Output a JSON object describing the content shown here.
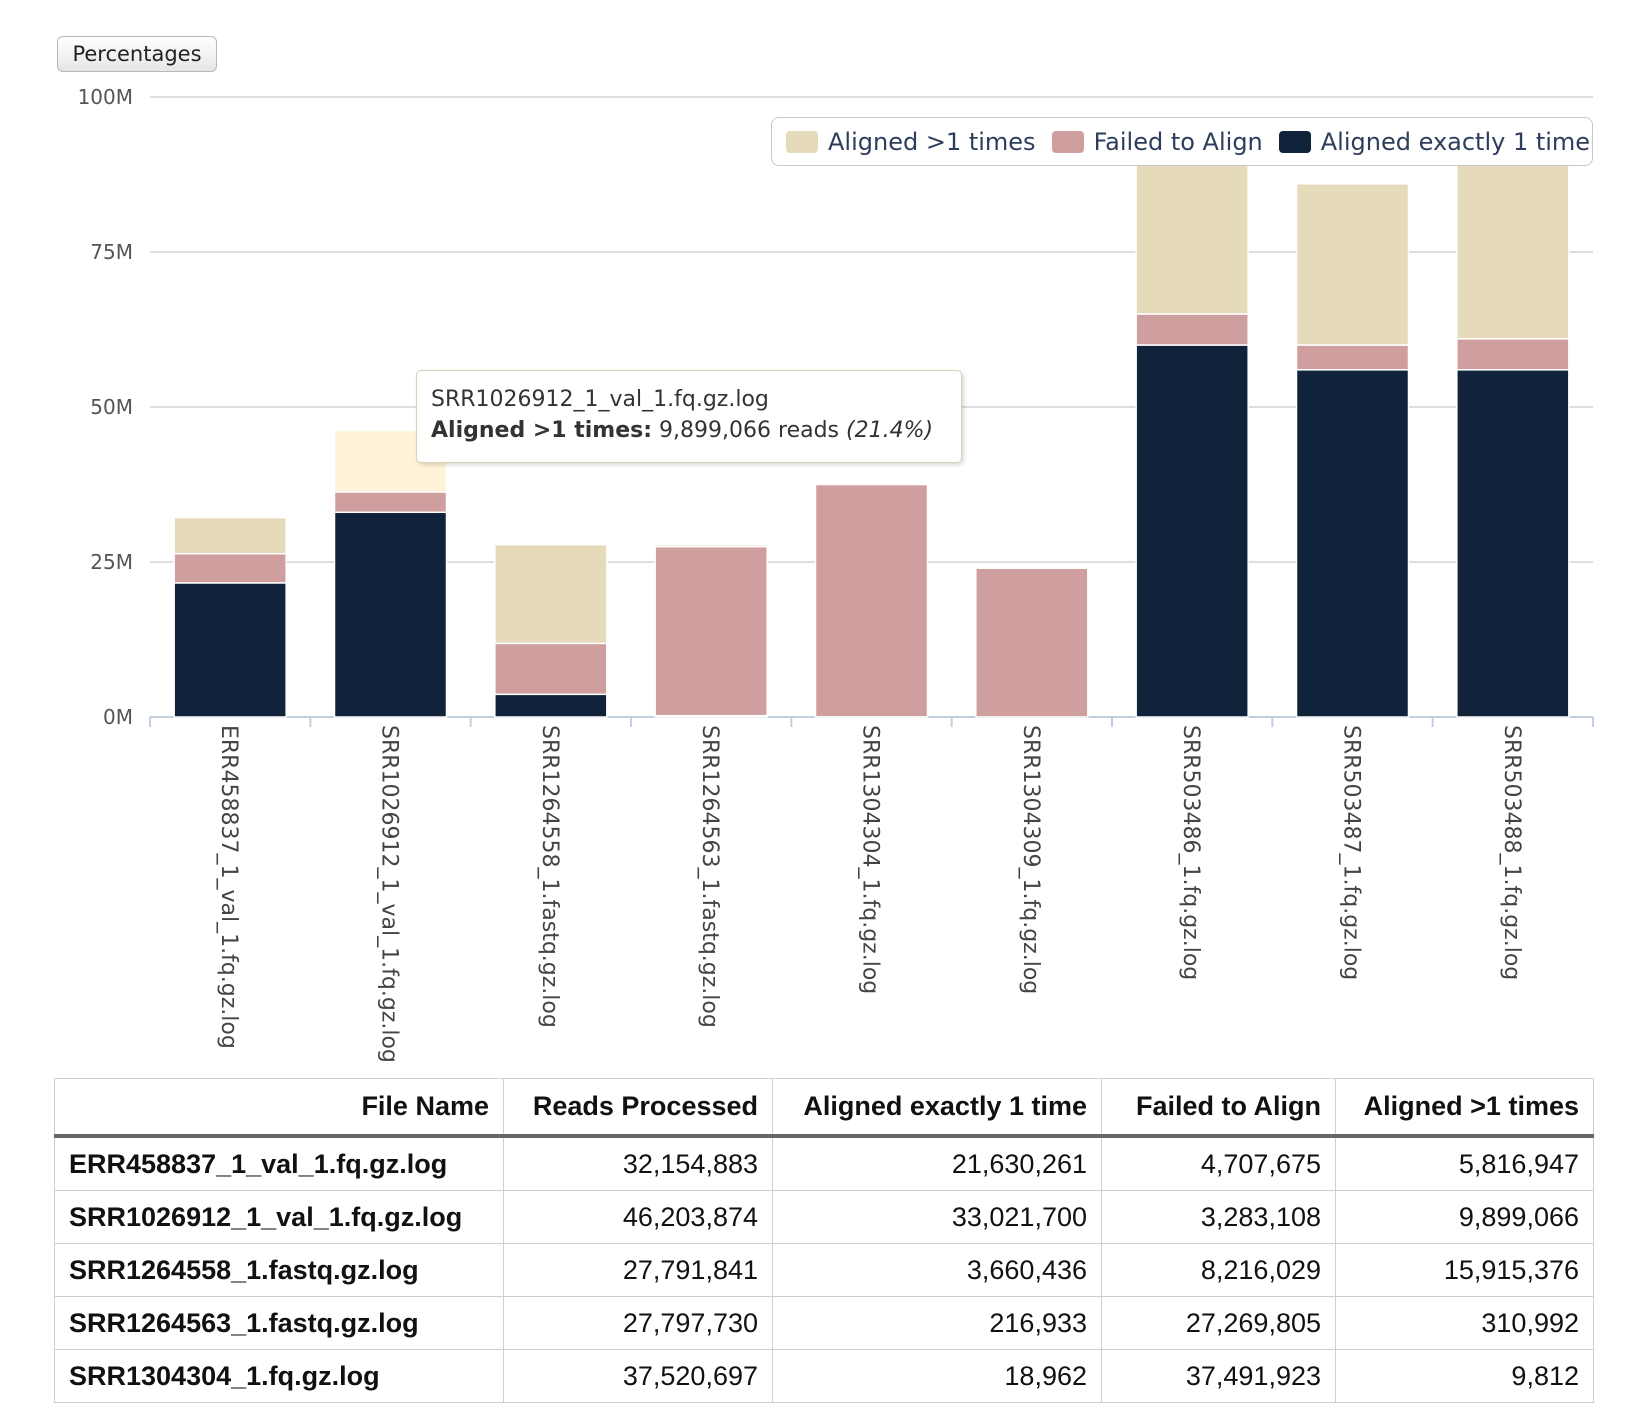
{
  "toolbar": {
    "percentages_label": "Percentages"
  },
  "legend": [
    {
      "label": "Aligned >1 times",
      "color": "#e5dab9"
    },
    {
      "label": "Failed to Align",
      "color": "#cf9e9e"
    },
    {
      "label": "Aligned exactly 1 time",
      "color": "#10233b"
    }
  ],
  "tooltip": {
    "title": "SRR1026912_1_val_1.fq.gz.log",
    "series": "Aligned >1 times:",
    "value": "9,899,066 reads",
    "percent": "(21.4%)"
  },
  "chart_data": {
    "type": "bar",
    "stacked": true,
    "ylim": [
      0,
      100000000
    ],
    "yticks": [
      "0M",
      "25M",
      "50M",
      "75M",
      "100M"
    ],
    "grid": true,
    "legend_position": "top-right",
    "categories": [
      "ERR458837_1_val_1.fq.gz.log",
      "SRR1026912_1_val_1.fq.gz.log",
      "SRR1264558_1.fastq.gz.log",
      "SRR1264563_1.fastq.gz.log",
      "SRR1304304_1.fq.gz.log",
      "SRR1304309_1.fq.gz.log",
      "SRR503486_1.fq.gz.log",
      "SRR503487_1.fq.gz.log",
      "SRR503488_1.fq.gz.log"
    ],
    "series": [
      {
        "name": "Aligned exactly 1 time",
        "color": "#10233b",
        "values": [
          21630261,
          33021700,
          3660436,
          216933,
          18962,
          0,
          60000000,
          56000000,
          56000000
        ]
      },
      {
        "name": "Failed to Align",
        "color": "#cf9e9e",
        "values": [
          4707675,
          3283108,
          8216029,
          27269805,
          37491923,
          24000000,
          5000000,
          4000000,
          5000000
        ]
      },
      {
        "name": "Aligned >1 times",
        "color": "#e5dab9",
        "values": [
          5816947,
          9899066,
          15915376,
          310992,
          9812,
          0,
          30000000,
          26000000,
          30000000
        ]
      }
    ],
    "highlight": {
      "category_index": 1,
      "series": "Aligned >1 times",
      "color": "#fff2d6"
    }
  },
  "table": {
    "headers": [
      "File Name",
      "Reads Processed",
      "Aligned exactly 1 time",
      "Failed to Align",
      "Aligned >1 times"
    ],
    "rows": [
      [
        "ERR458837_1_val_1.fq.gz.log",
        "32,154,883",
        "21,630,261",
        "4,707,675",
        "5,816,947"
      ],
      [
        "SRR1026912_1_val_1.fq.gz.log",
        "46,203,874",
        "33,021,700",
        "3,283,108",
        "9,899,066"
      ],
      [
        "SRR1264558_1.fastq.gz.log",
        "27,791,841",
        "3,660,436",
        "8,216,029",
        "15,915,376"
      ],
      [
        "SRR1264563_1.fastq.gz.log",
        "27,797,730",
        "216,933",
        "27,269,805",
        "310,992"
      ],
      [
        "SRR1304304_1.fq.gz.log",
        "37,520,697",
        "18,962",
        "37,491,923",
        "9,812"
      ]
    ]
  }
}
